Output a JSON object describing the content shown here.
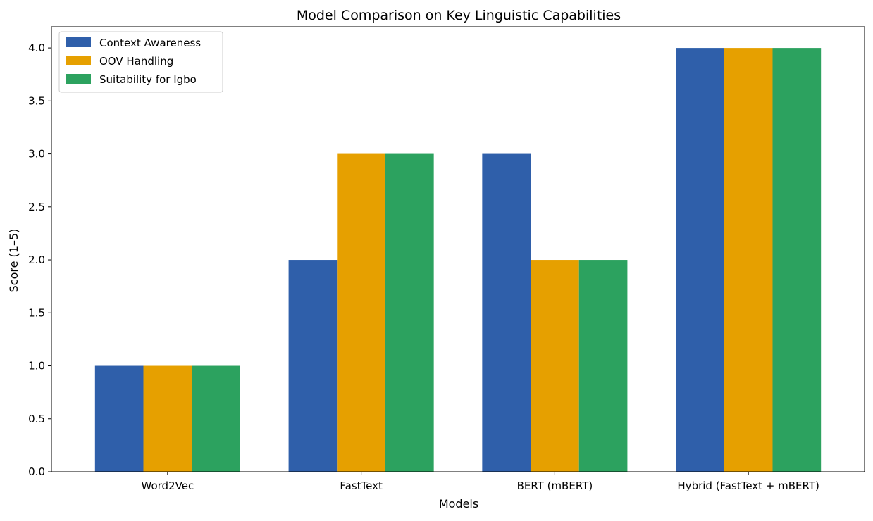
{
  "chart_data": {
    "type": "bar",
    "title": "Model Comparison on Key Linguistic Capabilities",
    "xlabel": "Models",
    "ylabel": "Score (1–5)",
    "categories": [
      "Word2Vec",
      "FastText",
      "BERT (mBERT)",
      "Hybrid (FastText + mBERT)"
    ],
    "series": [
      {
        "name": "Context Awareness",
        "color": "#2f5faa",
        "values": [
          1,
          2,
          3,
          4
        ]
      },
      {
        "name": "OOV Handling",
        "color": "#e6a000",
        "values": [
          1,
          3,
          2,
          4
        ]
      },
      {
        "name": "Suitability for Igbo",
        "color": "#2ca25f",
        "values": [
          1,
          3,
          2,
          4
        ]
      }
    ],
    "ylim": [
      0,
      4.2
    ],
    "yticks": [
      0.0,
      0.5,
      1.0,
      1.5,
      2.0,
      2.5,
      3.0,
      3.5,
      4.0
    ],
    "ytick_labels": [
      "0.0",
      "0.5",
      "1.0",
      "1.5",
      "2.0",
      "2.5",
      "3.0",
      "3.5",
      "4.0"
    ],
    "grid": false,
    "legend_position": "top-left"
  }
}
